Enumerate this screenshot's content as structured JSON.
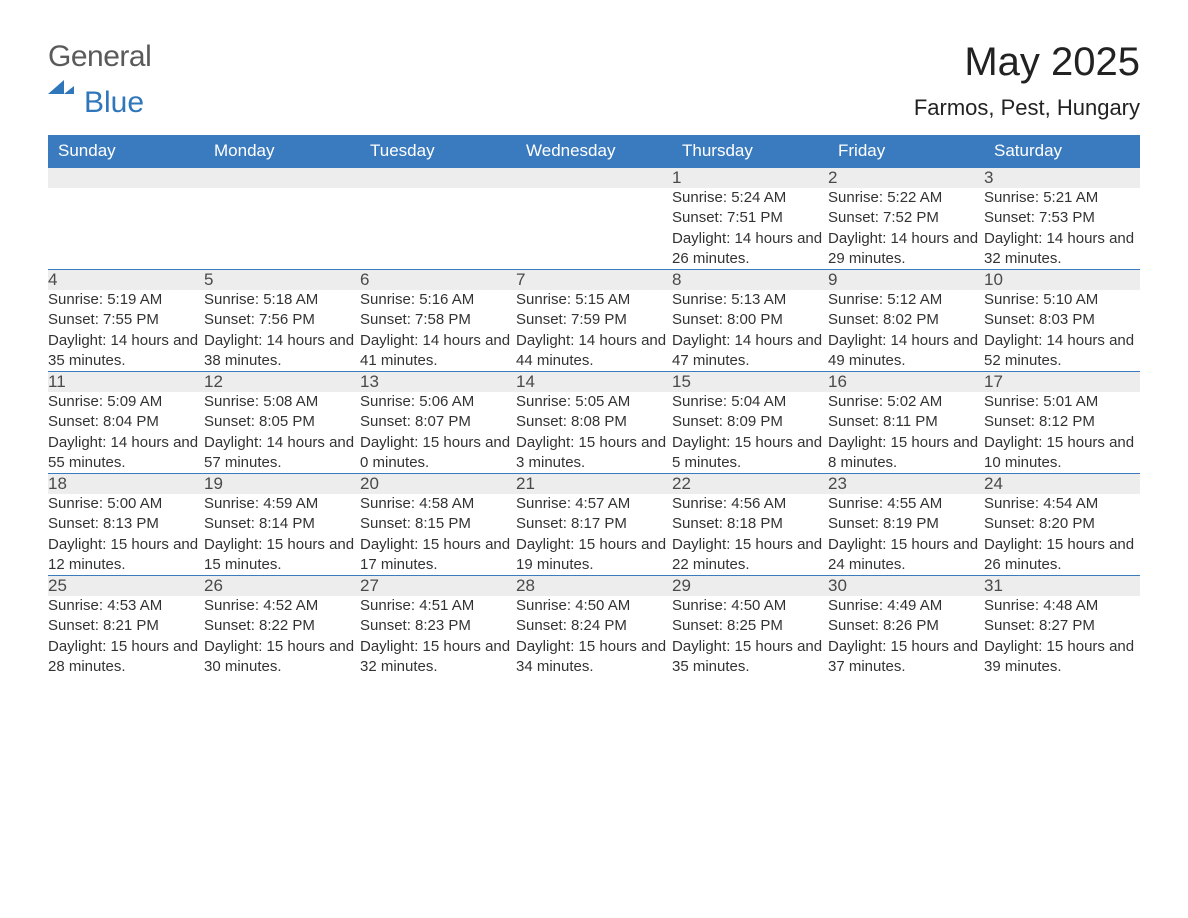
{
  "logo": {
    "text_general": "General",
    "text_blue": "Blue",
    "mark_color": "#2f76bb"
  },
  "header": {
    "month_title": "May 2025",
    "location": "Farmos, Pest, Hungary"
  },
  "colors": {
    "header_bg": "#3a7bbf",
    "header_text": "#ffffff",
    "daynum_bg": "#ededed",
    "rule": "#3a7bbf",
    "body_text": "#333333"
  },
  "weekday_labels": [
    "Sunday",
    "Monday",
    "Tuesday",
    "Wednesday",
    "Thursday",
    "Friday",
    "Saturday"
  ],
  "weeks": [
    [
      null,
      null,
      null,
      null,
      {
        "n": "1",
        "sunrise": "5:24 AM",
        "sunset": "7:51 PM",
        "day_h": 14,
        "day_m": 26
      },
      {
        "n": "2",
        "sunrise": "5:22 AM",
        "sunset": "7:52 PM",
        "day_h": 14,
        "day_m": 29
      },
      {
        "n": "3",
        "sunrise": "5:21 AM",
        "sunset": "7:53 PM",
        "day_h": 14,
        "day_m": 32
      }
    ],
    [
      {
        "n": "4",
        "sunrise": "5:19 AM",
        "sunset": "7:55 PM",
        "day_h": 14,
        "day_m": 35
      },
      {
        "n": "5",
        "sunrise": "5:18 AM",
        "sunset": "7:56 PM",
        "day_h": 14,
        "day_m": 38
      },
      {
        "n": "6",
        "sunrise": "5:16 AM",
        "sunset": "7:58 PM",
        "day_h": 14,
        "day_m": 41
      },
      {
        "n": "7",
        "sunrise": "5:15 AM",
        "sunset": "7:59 PM",
        "day_h": 14,
        "day_m": 44
      },
      {
        "n": "8",
        "sunrise": "5:13 AM",
        "sunset": "8:00 PM",
        "day_h": 14,
        "day_m": 47
      },
      {
        "n": "9",
        "sunrise": "5:12 AM",
        "sunset": "8:02 PM",
        "day_h": 14,
        "day_m": 49
      },
      {
        "n": "10",
        "sunrise": "5:10 AM",
        "sunset": "8:03 PM",
        "day_h": 14,
        "day_m": 52
      }
    ],
    [
      {
        "n": "11",
        "sunrise": "5:09 AM",
        "sunset": "8:04 PM",
        "day_h": 14,
        "day_m": 55
      },
      {
        "n": "12",
        "sunrise": "5:08 AM",
        "sunset": "8:05 PM",
        "day_h": 14,
        "day_m": 57
      },
      {
        "n": "13",
        "sunrise": "5:06 AM",
        "sunset": "8:07 PM",
        "day_h": 15,
        "day_m": 0
      },
      {
        "n": "14",
        "sunrise": "5:05 AM",
        "sunset": "8:08 PM",
        "day_h": 15,
        "day_m": 3
      },
      {
        "n": "15",
        "sunrise": "5:04 AM",
        "sunset": "8:09 PM",
        "day_h": 15,
        "day_m": 5
      },
      {
        "n": "16",
        "sunrise": "5:02 AM",
        "sunset": "8:11 PM",
        "day_h": 15,
        "day_m": 8
      },
      {
        "n": "17",
        "sunrise": "5:01 AM",
        "sunset": "8:12 PM",
        "day_h": 15,
        "day_m": 10
      }
    ],
    [
      {
        "n": "18",
        "sunrise": "5:00 AM",
        "sunset": "8:13 PM",
        "day_h": 15,
        "day_m": 12
      },
      {
        "n": "19",
        "sunrise": "4:59 AM",
        "sunset": "8:14 PM",
        "day_h": 15,
        "day_m": 15
      },
      {
        "n": "20",
        "sunrise": "4:58 AM",
        "sunset": "8:15 PM",
        "day_h": 15,
        "day_m": 17
      },
      {
        "n": "21",
        "sunrise": "4:57 AM",
        "sunset": "8:17 PM",
        "day_h": 15,
        "day_m": 19
      },
      {
        "n": "22",
        "sunrise": "4:56 AM",
        "sunset": "8:18 PM",
        "day_h": 15,
        "day_m": 22
      },
      {
        "n": "23",
        "sunrise": "4:55 AM",
        "sunset": "8:19 PM",
        "day_h": 15,
        "day_m": 24
      },
      {
        "n": "24",
        "sunrise": "4:54 AM",
        "sunset": "8:20 PM",
        "day_h": 15,
        "day_m": 26
      }
    ],
    [
      {
        "n": "25",
        "sunrise": "4:53 AM",
        "sunset": "8:21 PM",
        "day_h": 15,
        "day_m": 28
      },
      {
        "n": "26",
        "sunrise": "4:52 AM",
        "sunset": "8:22 PM",
        "day_h": 15,
        "day_m": 30
      },
      {
        "n": "27",
        "sunrise": "4:51 AM",
        "sunset": "8:23 PM",
        "day_h": 15,
        "day_m": 32
      },
      {
        "n": "28",
        "sunrise": "4:50 AM",
        "sunset": "8:24 PM",
        "day_h": 15,
        "day_m": 34
      },
      {
        "n": "29",
        "sunrise": "4:50 AM",
        "sunset": "8:25 PM",
        "day_h": 15,
        "day_m": 35
      },
      {
        "n": "30",
        "sunrise": "4:49 AM",
        "sunset": "8:26 PM",
        "day_h": 15,
        "day_m": 37
      },
      {
        "n": "31",
        "sunrise": "4:48 AM",
        "sunset": "8:27 PM",
        "day_h": 15,
        "day_m": 39
      }
    ]
  ],
  "labels": {
    "sunrise": "Sunrise: ",
    "sunset": "Sunset: ",
    "daylight_prefix": "Daylight: ",
    "hours_word": " hours and ",
    "minutes_word": " minutes."
  }
}
